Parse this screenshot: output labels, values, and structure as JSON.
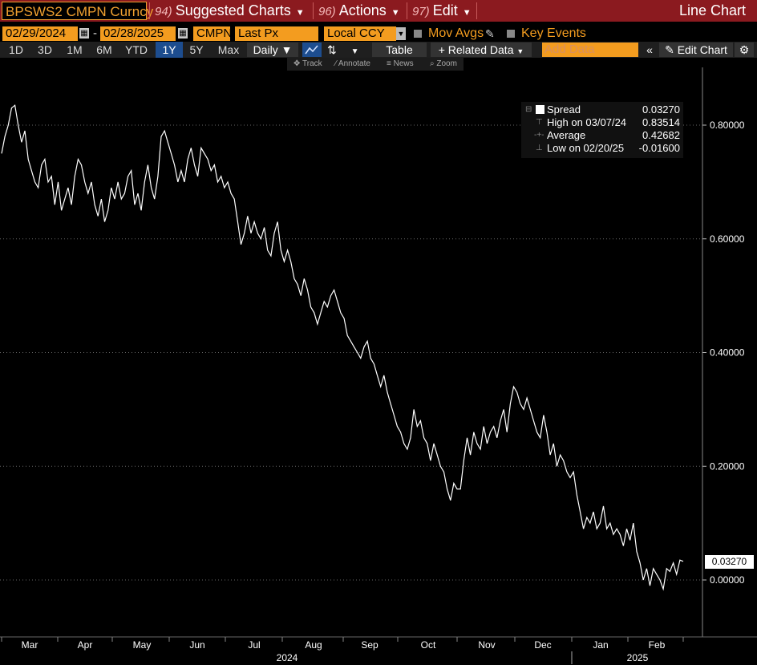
{
  "topbar": {
    "ticker": "BPSWS2 CMPN Curncy",
    "menus": [
      {
        "num": "94)",
        "label": "Suggested Charts"
      },
      {
        "num": "96)",
        "label": "Actions"
      },
      {
        "num": "97)",
        "label": "Edit"
      }
    ],
    "chart_type": "Line Chart"
  },
  "fields": {
    "start_date": "02/29/2024",
    "separator": "-",
    "end_date": "02/28/2025",
    "source": "CMPN",
    "price_field": "Last Px",
    "currency": "Local CCY",
    "mov_avgs": "Mov Avgs",
    "key_events": "Key Events"
  },
  "rangebar": {
    "ranges": [
      "1D",
      "3D",
      "1M",
      "6M",
      "YTD",
      "1Y",
      "5Y",
      "Max"
    ],
    "selected": "1Y",
    "frequency": "Daily",
    "table": "Table",
    "related": "Related Data",
    "add_data_placeholder": "Add Data",
    "edit_chart": "Edit Chart"
  },
  "minitoolbar": {
    "track": "Track",
    "annotate": "Annotate",
    "news": "News",
    "zoom": "Zoom"
  },
  "legend": {
    "series": "Spread",
    "series_value": "0.03270",
    "high_label": "High on 03/07/24",
    "high_value": "0.83514",
    "avg_label": "Average",
    "avg_value": "0.42682",
    "low_label": "Low on 02/20/25",
    "low_value": "-0.01600"
  },
  "last_value_tag": "0.03270",
  "colors": {
    "brand_red": "#8b1a1f",
    "field_orange": "#f39c1f",
    "selected_blue": "#1d4d8f",
    "line": "#ffffff"
  },
  "chart_data": {
    "type": "line",
    "ylim": [
      -0.1,
      0.9
    ],
    "yticks": [
      "0.80000",
      "0.60000",
      "0.40000",
      "0.20000",
      "0.00000"
    ],
    "ytick_values": [
      0.8,
      0.6,
      0.4,
      0.2,
      0.0
    ],
    "months": [
      "Mar",
      "Apr",
      "May",
      "Jun",
      "Jul",
      "Aug",
      "Sep",
      "Oct",
      "Nov",
      "Dec",
      "Jan",
      "Feb"
    ],
    "years": [
      "2024",
      "2025"
    ],
    "series": [
      {
        "name": "Spread",
        "x_start": "2024-02-29",
        "x_end": "2025-02-28",
        "values": [
          0.75,
          0.78,
          0.8,
          0.83,
          0.835,
          0.8,
          0.77,
          0.79,
          0.74,
          0.72,
          0.7,
          0.69,
          0.73,
          0.74,
          0.7,
          0.71,
          0.66,
          0.7,
          0.65,
          0.67,
          0.69,
          0.66,
          0.71,
          0.74,
          0.73,
          0.7,
          0.68,
          0.7,
          0.66,
          0.64,
          0.67,
          0.63,
          0.65,
          0.69,
          0.67,
          0.7,
          0.67,
          0.68,
          0.71,
          0.72,
          0.66,
          0.68,
          0.65,
          0.7,
          0.73,
          0.69,
          0.67,
          0.71,
          0.78,
          0.79,
          0.77,
          0.75,
          0.73,
          0.7,
          0.72,
          0.7,
          0.74,
          0.76,
          0.73,
          0.71,
          0.76,
          0.75,
          0.74,
          0.72,
          0.73,
          0.7,
          0.71,
          0.69,
          0.7,
          0.68,
          0.67,
          0.63,
          0.59,
          0.61,
          0.64,
          0.61,
          0.63,
          0.61,
          0.6,
          0.62,
          0.58,
          0.57,
          0.61,
          0.63,
          0.58,
          0.56,
          0.58,
          0.56,
          0.53,
          0.52,
          0.5,
          0.53,
          0.51,
          0.48,
          0.47,
          0.45,
          0.47,
          0.49,
          0.48,
          0.5,
          0.51,
          0.49,
          0.47,
          0.46,
          0.43,
          0.42,
          0.41,
          0.4,
          0.39,
          0.41,
          0.42,
          0.39,
          0.38,
          0.36,
          0.34,
          0.36,
          0.33,
          0.31,
          0.29,
          0.27,
          0.26,
          0.24,
          0.23,
          0.25,
          0.3,
          0.27,
          0.28,
          0.25,
          0.24,
          0.21,
          0.24,
          0.22,
          0.2,
          0.19,
          0.16,
          0.14,
          0.17,
          0.16,
          0.16,
          0.21,
          0.25,
          0.22,
          0.26,
          0.24,
          0.23,
          0.27,
          0.24,
          0.26,
          0.27,
          0.25,
          0.28,
          0.3,
          0.26,
          0.31,
          0.34,
          0.33,
          0.31,
          0.3,
          0.32,
          0.3,
          0.28,
          0.26,
          0.25,
          0.29,
          0.26,
          0.22,
          0.24,
          0.2,
          0.22,
          0.21,
          0.19,
          0.18,
          0.19,
          0.15,
          0.12,
          0.09,
          0.11,
          0.1,
          0.12,
          0.09,
          0.1,
          0.13,
          0.09,
          0.1,
          0.08,
          0.09,
          0.08,
          0.06,
          0.09,
          0.07,
          0.1,
          0.05,
          0.03,
          0.0,
          0.02,
          -0.01,
          0.02,
          0.01,
          0.0,
          -0.016,
          0.02,
          0.015,
          0.03,
          0.01,
          0.035,
          0.0327
        ]
      }
    ]
  }
}
